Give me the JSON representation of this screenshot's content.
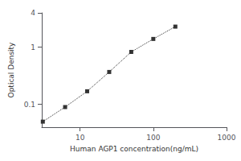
{
  "chart_data": {
    "type": "line",
    "x": [
      3.1,
      6.25,
      12.5,
      25,
      50,
      100,
      200
    ],
    "values": [
      0.05,
      0.09,
      0.17,
      0.37,
      0.83,
      1.4,
      2.3
    ],
    "xlabel": "Human AGP1 concentration(ng/mL)",
    "ylabel": "Optical Density",
    "log": true,
    "xlim": [
      3,
      1000
    ],
    "xticks": [
      10,
      100,
      1000
    ],
    "ylim": [
      0.04,
      4
    ],
    "yticks": [
      0.1,
      1,
      4
    ],
    "grid": false,
    "color": "#333333",
    "marker": "square",
    "line_style": "dotted"
  }
}
